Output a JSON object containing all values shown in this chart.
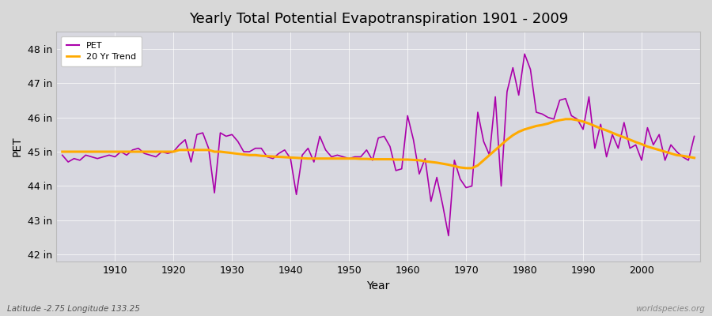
{
  "title": "Yearly Total Potential Evapotranspiration 1901 - 2009",
  "xlabel": "Year",
  "ylabel": "PET",
  "footnote_left": "Latitude -2.75 Longitude 133.25",
  "footnote_right": "worldspecies.org",
  "fig_bg_color": "#d8d8d8",
  "plot_bg_color": "#d8d8e0",
  "pet_color": "#aa00aa",
  "trend_color": "#ffaa00",
  "ylim": [
    41.8,
    48.5
  ],
  "yticks": [
    42,
    43,
    44,
    45,
    46,
    47,
    48
  ],
  "ytick_labels": [
    "42 in",
    "43 in",
    "44 in",
    "45 in",
    "46 in",
    "47 in",
    "48 in"
  ],
  "xlim": [
    1900,
    2010
  ],
  "xticks": [
    1910,
    1920,
    1930,
    1940,
    1950,
    1960,
    1970,
    1980,
    1990,
    2000
  ],
  "years": [
    1901,
    1902,
    1903,
    1904,
    1905,
    1906,
    1907,
    1908,
    1909,
    1910,
    1911,
    1912,
    1913,
    1914,
    1915,
    1916,
    1917,
    1918,
    1919,
    1920,
    1921,
    1922,
    1923,
    1924,
    1925,
    1926,
    1927,
    1928,
    1929,
    1930,
    1931,
    1932,
    1933,
    1934,
    1935,
    1936,
    1937,
    1938,
    1939,
    1940,
    1941,
    1942,
    1943,
    1944,
    1945,
    1946,
    1947,
    1948,
    1949,
    1950,
    1951,
    1952,
    1953,
    1954,
    1955,
    1956,
    1957,
    1958,
    1959,
    1960,
    1961,
    1962,
    1963,
    1964,
    1965,
    1966,
    1967,
    1968,
    1969,
    1970,
    1971,
    1972,
    1973,
    1974,
    1975,
    1976,
    1977,
    1978,
    1979,
    1980,
    1981,
    1982,
    1983,
    1984,
    1985,
    1986,
    1987,
    1988,
    1989,
    1990,
    1991,
    1992,
    1993,
    1994,
    1995,
    1996,
    1997,
    1998,
    1999,
    2000,
    2001,
    2002,
    2003,
    2004,
    2005,
    2006,
    2007,
    2008,
    2009
  ],
  "pet_values": [
    44.9,
    44.7,
    44.8,
    44.75,
    44.9,
    44.85,
    44.8,
    44.85,
    44.9,
    44.85,
    45.0,
    44.9,
    45.05,
    45.1,
    44.95,
    44.9,
    44.85,
    45.0,
    44.95,
    45.0,
    45.2,
    45.35,
    44.7,
    45.5,
    45.55,
    45.1,
    43.8,
    45.55,
    45.45,
    45.5,
    45.3,
    45.0,
    45.0,
    45.1,
    45.1,
    44.85,
    44.8,
    44.95,
    45.05,
    44.8,
    43.75,
    44.9,
    45.1,
    44.7,
    45.45,
    45.05,
    44.85,
    44.9,
    44.85,
    44.8,
    44.85,
    44.85,
    45.05,
    44.75,
    45.4,
    45.45,
    45.15,
    44.45,
    44.5,
    46.05,
    45.35,
    44.35,
    44.8,
    43.55,
    44.25,
    43.45,
    42.55,
    44.75,
    44.2,
    43.95,
    44.0,
    46.15,
    45.3,
    44.9,
    46.6,
    44.0,
    46.75,
    47.45,
    46.65,
    47.85,
    47.4,
    46.15,
    46.1,
    46.0,
    45.95,
    46.5,
    46.55,
    46.05,
    45.95,
    45.65,
    46.6,
    45.1,
    45.8,
    44.85,
    45.5,
    45.1,
    45.85,
    45.1,
    45.2,
    44.75,
    45.7,
    45.2,
    45.5,
    44.75,
    45.2,
    45.0,
    44.85,
    44.75,
    45.45
  ],
  "trend_values": [
    45.0,
    45.0,
    45.0,
    45.0,
    45.0,
    45.0,
    45.0,
    45.0,
    45.0,
    45.0,
    45.0,
    45.0,
    45.0,
    45.0,
    45.0,
    45.0,
    45.0,
    45.0,
    45.0,
    45.0,
    45.05,
    45.05,
    45.05,
    45.05,
    45.05,
    45.05,
    45.0,
    45.0,
    44.98,
    44.96,
    44.94,
    44.92,
    44.9,
    44.9,
    44.88,
    44.87,
    44.86,
    44.85,
    44.84,
    44.83,
    44.82,
    44.81,
    44.8,
    44.8,
    44.8,
    44.8,
    44.8,
    44.8,
    44.8,
    44.8,
    44.8,
    44.79,
    44.79,
    44.78,
    44.78,
    44.78,
    44.78,
    44.77,
    44.77,
    44.77,
    44.76,
    44.75,
    44.72,
    44.7,
    44.68,
    44.65,
    44.62,
    44.58,
    44.54,
    44.52,
    44.52,
    44.6,
    44.75,
    44.9,
    45.05,
    45.2,
    45.35,
    45.48,
    45.58,
    45.65,
    45.7,
    45.75,
    45.78,
    45.82,
    45.88,
    45.92,
    45.95,
    45.95,
    45.92,
    45.88,
    45.82,
    45.75,
    45.68,
    45.62,
    45.55,
    45.48,
    45.42,
    45.35,
    45.28,
    45.22,
    45.15,
    45.1,
    45.05,
    45.0,
    44.95,
    44.9,
    44.88,
    44.85,
    44.82
  ]
}
